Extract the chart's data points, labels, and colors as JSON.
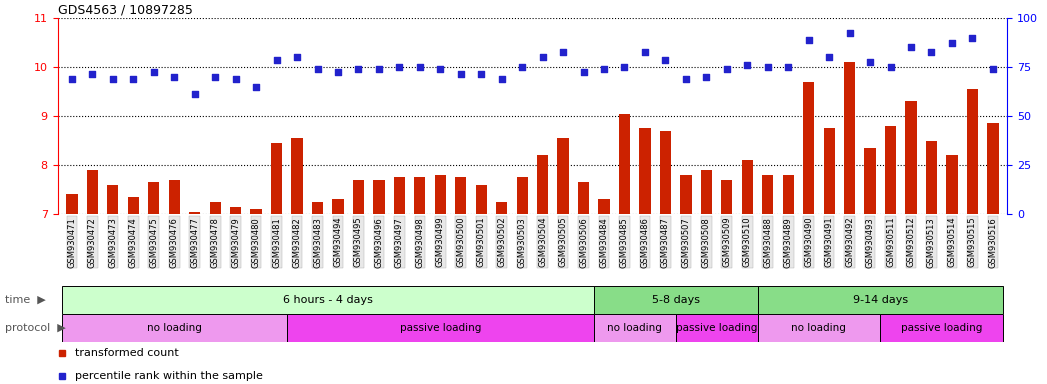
{
  "title": "GDS4563 / 10897285",
  "samples": [
    "GSM930471",
    "GSM930472",
    "GSM930473",
    "GSM930474",
    "GSM930475",
    "GSM930476",
    "GSM930477",
    "GSM930478",
    "GSM930479",
    "GSM930480",
    "GSM930481",
    "GSM930482",
    "GSM930483",
    "GSM930494",
    "GSM930495",
    "GSM930496",
    "GSM930497",
    "GSM930498",
    "GSM930499",
    "GSM930500",
    "GSM930501",
    "GSM930502",
    "GSM930503",
    "GSM930504",
    "GSM930505",
    "GSM930506",
    "GSM930484",
    "GSM930485",
    "GSM930486",
    "GSM930487",
    "GSM930507",
    "GSM930508",
    "GSM930509",
    "GSM930510",
    "GSM930488",
    "GSM930489",
    "GSM930490",
    "GSM930491",
    "GSM930492",
    "GSM930493",
    "GSM930511",
    "GSM930512",
    "GSM930513",
    "GSM930514",
    "GSM930515",
    "GSM930516"
  ],
  "bar_values": [
    7.4,
    7.9,
    7.6,
    7.35,
    7.65,
    7.7,
    7.05,
    7.25,
    7.15,
    7.1,
    8.45,
    8.55,
    7.25,
    7.3,
    7.7,
    7.7,
    7.75,
    7.75,
    7.8,
    7.75,
    7.6,
    7.25,
    7.75,
    8.2,
    8.55,
    7.65,
    7.3,
    9.05,
    8.75,
    8.7,
    7.8,
    7.9,
    7.7,
    8.1,
    7.8,
    7.8,
    9.7,
    8.75,
    10.1,
    8.35,
    8.8,
    9.3,
    8.5,
    8.2,
    9.55,
    8.85
  ],
  "dot_values": [
    9.75,
    9.85,
    9.75,
    9.75,
    9.9,
    9.8,
    9.45,
    9.8,
    9.75,
    9.6,
    10.15,
    10.2,
    9.95,
    9.9,
    9.95,
    9.95,
    10.0,
    10.0,
    9.95,
    9.85,
    9.85,
    9.75,
    10.0,
    10.2,
    10.3,
    9.9,
    9.95,
    10.0,
    10.3,
    10.15,
    9.75,
    9.8,
    9.95,
    10.05,
    10.0,
    10.0,
    10.55,
    10.2,
    10.7,
    10.1,
    10.0,
    10.4,
    10.3,
    10.5,
    10.6,
    9.95
  ],
  "ylim_left": [
    7.0,
    11.0
  ],
  "ylim_right": [
    0,
    100
  ],
  "yticks_left": [
    7,
    8,
    9,
    10,
    11
  ],
  "yticks_right": [
    0,
    25,
    50,
    75,
    100
  ],
  "bar_color": "#cc2200",
  "dot_color": "#2222cc",
  "bg_color": "#ffffff",
  "time_colors": [
    "#ccffcc",
    "#88dd88",
    "#88dd88"
  ],
  "time_groups": [
    {
      "label": "6 hours - 4 days",
      "start": 0,
      "end": 26
    },
    {
      "label": "5-8 days",
      "start": 26,
      "end": 34
    },
    {
      "label": "9-14 days",
      "start": 34,
      "end": 46
    }
  ],
  "proto_colors": {
    "no loading": "#ee99ee",
    "passive loading": "#ee44ee"
  },
  "protocol_groups": [
    {
      "label": "no loading",
      "start": 0,
      "end": 11
    },
    {
      "label": "passive loading",
      "start": 11,
      "end": 26
    },
    {
      "label": "no loading",
      "start": 26,
      "end": 30
    },
    {
      "label": "passive loading",
      "start": 30,
      "end": 34
    },
    {
      "label": "no loading",
      "start": 34,
      "end": 40
    },
    {
      "label": "passive loading",
      "start": 40,
      "end": 46
    }
  ],
  "legend_items": [
    {
      "label": "transformed count",
      "color": "#cc2200"
    },
    {
      "label": "percentile rank within the sample",
      "color": "#2222cc"
    }
  ]
}
